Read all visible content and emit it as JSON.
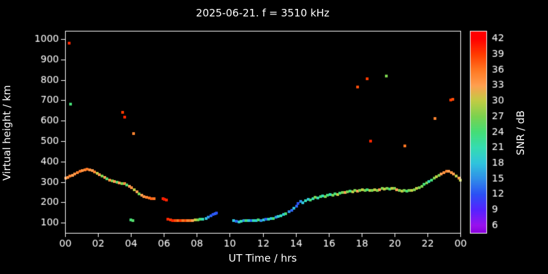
{
  "title": "2025-06-21. f = 3510 kHz",
  "colors": {
    "background": "#000000",
    "frame": "#ffffff",
    "text": "#ffffff"
  },
  "chart_data": {
    "type": "scatter",
    "title": "2025-06-21. f = 3510 kHz",
    "xlabel": "UT Time / hrs",
    "ylabel": "Virtual height / km",
    "colorbar_label": "SNR / dB",
    "grid": false,
    "xlim": [
      0,
      24
    ],
    "ylim": [
      50,
      1040
    ],
    "x_ticks": [
      0,
      2,
      4,
      6,
      8,
      10,
      12,
      14,
      16,
      18,
      20,
      22,
      24
    ],
    "x_tick_labels": [
      "00",
      "02",
      "04",
      "06",
      "08",
      "10",
      "12",
      "14",
      "16",
      "18",
      "20",
      "22",
      "00"
    ],
    "y_ticks": [
      100,
      200,
      300,
      400,
      500,
      600,
      700,
      800,
      900,
      1000
    ],
    "y_tick_labels": [
      "100",
      "200",
      "300",
      "400",
      "500",
      "600",
      "700",
      "800",
      "900",
      "1000"
    ],
    "colorbar": {
      "min": 4.5,
      "max": 43.5,
      "ticks": [
        42,
        39,
        36,
        33,
        30,
        27,
        24,
        21,
        18,
        15,
        12,
        9,
        6
      ],
      "stops": [
        {
          "v": 4.5,
          "c": "#8800dd"
        },
        {
          "v": 6,
          "c": "#9911ee"
        },
        {
          "v": 9,
          "c": "#5522ff"
        },
        {
          "v": 12,
          "c": "#2b50f5"
        },
        {
          "v": 15,
          "c": "#2f8fe8"
        },
        {
          "v": 18,
          "c": "#2fc4dd"
        },
        {
          "v": 21,
          "c": "#35dcb2"
        },
        {
          "v": 24,
          "c": "#44dd77"
        },
        {
          "v": 27,
          "c": "#7bd24f"
        },
        {
          "v": 30,
          "c": "#c0cc44"
        },
        {
          "v": 33,
          "c": "#ff9f50"
        },
        {
          "v": 36,
          "c": "#ff7722"
        },
        {
          "v": 39,
          "c": "#ff3b00"
        },
        {
          "v": 42,
          "c": "#ff0000"
        },
        {
          "v": 43.5,
          "c": "#ff0000"
        }
      ]
    },
    "points": [
      [
        0.05,
        318,
        33
      ],
      [
        0.15,
        322,
        34
      ],
      [
        0.3,
        328,
        35
      ],
      [
        0.45,
        333,
        33
      ],
      [
        0.6,
        338,
        34
      ],
      [
        0.75,
        345,
        35
      ],
      [
        0.9,
        352,
        36
      ],
      [
        1.05,
        357,
        34
      ],
      [
        1.2,
        360,
        35
      ],
      [
        1.35,
        361,
        36
      ],
      [
        1.5,
        359,
        34
      ],
      [
        1.65,
        356,
        33
      ],
      [
        1.8,
        350,
        35
      ],
      [
        1.95,
        342,
        30
      ],
      [
        2.1,
        334,
        33
      ],
      [
        2.25,
        328,
        27
      ],
      [
        2.4,
        322,
        33
      ],
      [
        2.55,
        315,
        25
      ],
      [
        2.7,
        310,
        34
      ],
      [
        2.85,
        306,
        27
      ],
      [
        3.0,
        302,
        33
      ],
      [
        3.15,
        299,
        25
      ],
      [
        3.3,
        296,
        33
      ],
      [
        3.45,
        293,
        27
      ],
      [
        3.6,
        290,
        34
      ],
      [
        3.75,
        285,
        25
      ],
      [
        3.9,
        278,
        33
      ],
      [
        4.05,
        270,
        34
      ],
      [
        4.2,
        260,
        30
      ],
      [
        4.35,
        250,
        33
      ],
      [
        4.5,
        242,
        27
      ],
      [
        4.65,
        234,
        33
      ],
      [
        4.8,
        228,
        34
      ],
      [
        4.95,
        224,
        35
      ],
      [
        5.1,
        221,
        36
      ],
      [
        5.25,
        219,
        37
      ],
      [
        5.4,
        217,
        36
      ],
      [
        5.95,
        217,
        40
      ],
      [
        6.05,
        214,
        41
      ],
      [
        6.15,
        212,
        40
      ],
      [
        6.25,
        117,
        40
      ],
      [
        6.4,
        114,
        39
      ],
      [
        6.55,
        112,
        40
      ],
      [
        6.7,
        111,
        38
      ],
      [
        6.85,
        111,
        36
      ],
      [
        7.0,
        110,
        39
      ],
      [
        7.15,
        111,
        36
      ],
      [
        7.3,
        110,
        38
      ],
      [
        7.45,
        111,
        35
      ],
      [
        7.6,
        110,
        36
      ],
      [
        7.75,
        112,
        33
      ],
      [
        7.9,
        113,
        30
      ],
      [
        8.05,
        114,
        27
      ],
      [
        8.2,
        116,
        24
      ],
      [
        8.35,
        118,
        21
      ],
      [
        8.55,
        122,
        18
      ],
      [
        8.7,
        127,
        15
      ],
      [
        8.85,
        133,
        13
      ],
      [
        9.0,
        139,
        12
      ],
      [
        9.1,
        143,
        13
      ],
      [
        9.2,
        146,
        12
      ],
      [
        10.25,
        111,
        18
      ],
      [
        10.4,
        107,
        13
      ],
      [
        10.55,
        105,
        19
      ],
      [
        10.7,
        107,
        21
      ],
      [
        10.85,
        109,
        15
      ],
      [
        11.0,
        111,
        24
      ],
      [
        11.15,
        109,
        18
      ],
      [
        11.3,
        111,
        13
      ],
      [
        11.45,
        112,
        21
      ],
      [
        11.6,
        111,
        18
      ],
      [
        11.75,
        114,
        24
      ],
      [
        11.9,
        112,
        15
      ],
      [
        12.05,
        114,
        19
      ],
      [
        12.2,
        116,
        13
      ],
      [
        12.35,
        117,
        21
      ],
      [
        12.5,
        119,
        18
      ],
      [
        12.65,
        122,
        24
      ],
      [
        12.8,
        126,
        15
      ],
      [
        12.95,
        130,
        19
      ],
      [
        13.1,
        135,
        21
      ],
      [
        13.25,
        139,
        18
      ],
      [
        13.4,
        144,
        24
      ],
      [
        13.6,
        154,
        15
      ],
      [
        13.75,
        161,
        13
      ],
      [
        13.9,
        170,
        18
      ],
      [
        14.05,
        181,
        13
      ],
      [
        14.15,
        194,
        12
      ],
      [
        14.3,
        205,
        15
      ],
      [
        14.45,
        198,
        18
      ],
      [
        14.6,
        209,
        21
      ],
      [
        14.75,
        214,
        18
      ],
      [
        14.9,
        211,
        24
      ],
      [
        15.05,
        219,
        21
      ],
      [
        15.2,
        224,
        27
      ],
      [
        15.35,
        221,
        21
      ],
      [
        15.5,
        227,
        24
      ],
      [
        15.65,
        231,
        21
      ],
      [
        15.8,
        227,
        27
      ],
      [
        15.95,
        234,
        24
      ],
      [
        16.1,
        237,
        21
      ],
      [
        16.25,
        234,
        27
      ],
      [
        16.4,
        241,
        24
      ],
      [
        16.55,
        239,
        30
      ],
      [
        16.7,
        245,
        24
      ],
      [
        16.85,
        249,
        27
      ],
      [
        17.0,
        247,
        33
      ],
      [
        17.15,
        251,
        27
      ],
      [
        17.3,
        254,
        24
      ],
      [
        17.45,
        251,
        30
      ],
      [
        17.6,
        257,
        27
      ],
      [
        17.75,
        254,
        33
      ],
      [
        17.9,
        259,
        27
      ],
      [
        18.05,
        261,
        30
      ],
      [
        18.2,
        257,
        27
      ],
      [
        18.35,
        261,
        24
      ],
      [
        18.5,
        257,
        30
      ],
      [
        18.65,
        259,
        27
      ],
      [
        18.8,
        261,
        30
      ],
      [
        18.95,
        257,
        27
      ],
      [
        19.1,
        262,
        33
      ],
      [
        19.25,
        267,
        27
      ],
      [
        19.4,
        264,
        30
      ],
      [
        19.55,
        269,
        27
      ],
      [
        19.7,
        265,
        24
      ],
      [
        19.85,
        269,
        30
      ],
      [
        20.0,
        267,
        27
      ],
      [
        20.15,
        261,
        33
      ],
      [
        20.3,
        257,
        27
      ],
      [
        20.45,
        254,
        30
      ],
      [
        20.6,
        257,
        27
      ],
      [
        20.75,
        254,
        24
      ],
      [
        20.9,
        257,
        27
      ],
      [
        21.05,
        259,
        30
      ],
      [
        21.2,
        263,
        27
      ],
      [
        21.35,
        267,
        30
      ],
      [
        21.5,
        271,
        27
      ],
      [
        21.65,
        279,
        27
      ],
      [
        21.8,
        287,
        24
      ],
      [
        21.95,
        294,
        27
      ],
      [
        22.1,
        301,
        21
      ],
      [
        22.25,
        309,
        24
      ],
      [
        22.4,
        317,
        27
      ],
      [
        22.55,
        324,
        30
      ],
      [
        22.7,
        331,
        27
      ],
      [
        22.85,
        339,
        33
      ],
      [
        23.0,
        347,
        34
      ],
      [
        23.15,
        353,
        35
      ],
      [
        23.3,
        351,
        33
      ],
      [
        23.45,
        346,
        34
      ],
      [
        23.6,
        339,
        33
      ],
      [
        23.75,
        329,
        30
      ],
      [
        23.9,
        317,
        33
      ],
      [
        23.98,
        307,
        30
      ],
      [
        0.25,
        980,
        40
      ],
      [
        0.35,
        680,
        24
      ],
      [
        3.5,
        640,
        39
      ],
      [
        3.62,
        618,
        40
      ],
      [
        4.0,
        115,
        24
      ],
      [
        4.12,
        112,
        25
      ],
      [
        4.18,
        535,
        35
      ],
      [
        17.78,
        765,
        38
      ],
      [
        18.35,
        805,
        39
      ],
      [
        18.55,
        500,
        40
      ],
      [
        19.5,
        820,
        27
      ],
      [
        20.62,
        475,
        36
      ],
      [
        22.48,
        610,
        35
      ],
      [
        23.42,
        700,
        39
      ],
      [
        23.55,
        706,
        38
      ]
    ]
  }
}
